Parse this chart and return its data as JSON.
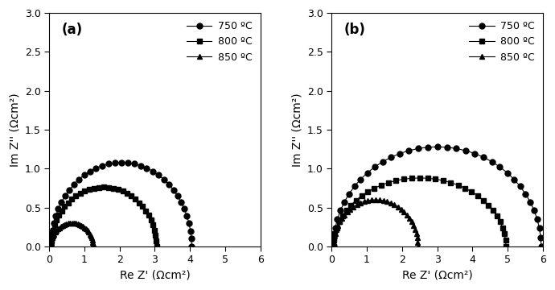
{
  "panel_a": {
    "label": "(a)",
    "series": [
      {
        "temp": "750 ºC",
        "marker": "o",
        "x_start": 0.05,
        "x_end": 4.05,
        "y_peak": 1.08
      },
      {
        "temp": "800 ºC",
        "marker": "s",
        "x_start": 0.05,
        "x_end": 3.05,
        "y_peak": 0.76
      },
      {
        "temp": "850 ºC",
        "marker": "^",
        "x_start": 0.05,
        "x_end": 1.25,
        "y_peak": 0.3
      }
    ],
    "xlabel": "Re Z' (Ωcm²)",
    "ylabel": "Im Z'' (Ωcm²)",
    "xlim": [
      0,
      6
    ],
    "ylim": [
      0,
      3.0
    ],
    "xticks": [
      0,
      1,
      2,
      3,
      4,
      5,
      6
    ],
    "yticks": [
      0.0,
      0.5,
      1.0,
      1.5,
      2.0,
      2.5,
      3.0
    ]
  },
  "panel_b": {
    "label": "(b)",
    "series": [
      {
        "temp": "750 ºC",
        "marker": "o",
        "x_start": 0.05,
        "x_end": 5.95,
        "y_peak": 1.28
      },
      {
        "temp": "800 ºC",
        "marker": "s",
        "x_start": 0.05,
        "x_end": 4.95,
        "y_peak": 0.88
      },
      {
        "temp": "850 ºC",
        "marker": "^",
        "x_start": 0.05,
        "x_end": 2.45,
        "y_peak": 0.6
      }
    ],
    "xlabel": "Re Z' (Ωcm²)",
    "ylabel": "Im Z'' (Ωcm²)",
    "xlim": [
      0,
      6
    ],
    "ylim": [
      0,
      3.0
    ],
    "xticks": [
      0,
      1,
      2,
      3,
      4,
      5,
      6
    ],
    "yticks": [
      0.0,
      0.5,
      1.0,
      1.5,
      2.0,
      2.5,
      3.0
    ]
  },
  "line_color": "#000000",
  "marker_size": 5,
  "n_points": 35,
  "legend_fontsize": 9,
  "axis_fontsize": 10,
  "label_fontsize": 12,
  "tick_fontsize": 9
}
